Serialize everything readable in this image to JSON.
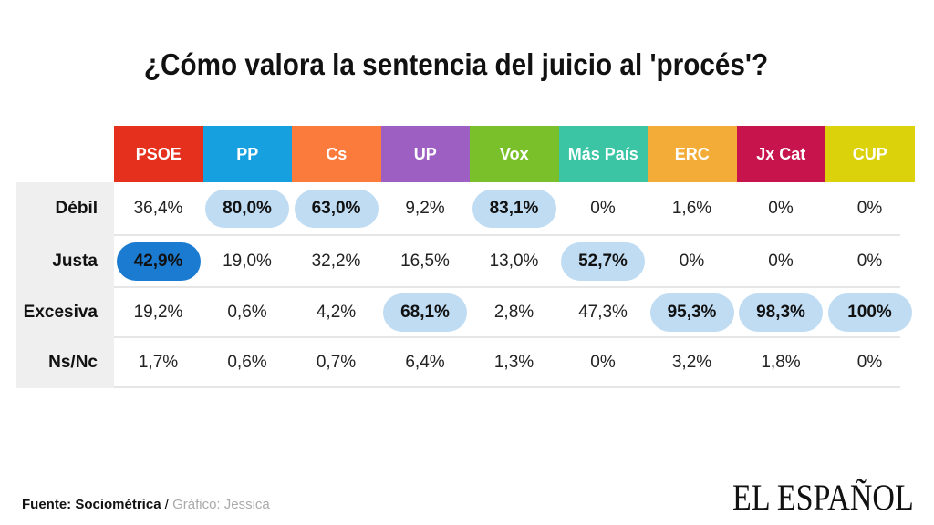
{
  "chart_data": {
    "type": "table",
    "title": "¿Cómo valora la sentencia del juicio al 'procés'?",
    "columns": [
      {
        "name": "PSOE",
        "color": "#e5301e"
      },
      {
        "name": "PP",
        "color": "#16a0e0"
      },
      {
        "name": "Cs",
        "color": "#fb7b3c"
      },
      {
        "name": "UP",
        "color": "#9e5fc2"
      },
      {
        "name": "Vox",
        "color": "#79c02a"
      },
      {
        "name": "Más País",
        "color": "#3cc5a5"
      },
      {
        "name": "ERC",
        "color": "#f3ac38"
      },
      {
        "name": "Jx Cat",
        "color": "#c8144c"
      },
      {
        "name": "CUP",
        "color": "#dbd20b"
      }
    ],
    "rows": [
      {
        "label": "Débil",
        "values": [
          "36,4%",
          "80,0%",
          "63,0%",
          "9,2%",
          "83,1%",
          "0%",
          "1,6%",
          "0%",
          "0%"
        ],
        "highlight": [
          0,
          1,
          1,
          0,
          1,
          0,
          0,
          0,
          0
        ]
      },
      {
        "label": "Justa",
        "values": [
          "42,9%",
          "19,0%",
          "32,2%",
          "16,5%",
          "13,0%",
          "52,7%",
          "0%",
          "0%",
          "0%"
        ],
        "highlight": [
          2,
          0,
          0,
          0,
          0,
          1,
          0,
          0,
          0
        ]
      },
      {
        "label": "Excesiva",
        "values": [
          "19,2%",
          "0,6%",
          "4,2%",
          "68,1%",
          "2,8%",
          "47,3%",
          "95,3%",
          "98,3%",
          "100%"
        ],
        "highlight": [
          0,
          0,
          0,
          1,
          0,
          0,
          1,
          1,
          1
        ]
      },
      {
        "label": "Ns/Nc",
        "values": [
          "1,7%",
          "0,6%",
          "0,7%",
          "6,4%",
          "1,3%",
          "0%",
          "3,2%",
          "1,8%",
          "0%"
        ],
        "highlight": [
          0,
          0,
          0,
          0,
          0,
          0,
          0,
          0,
          0
        ]
      }
    ]
  },
  "footer": {
    "source": "Fuente: Sociométrica",
    "sep": " / ",
    "credit": "Gráfico: Jessica"
  },
  "logo": "EL ESPAÑOL"
}
